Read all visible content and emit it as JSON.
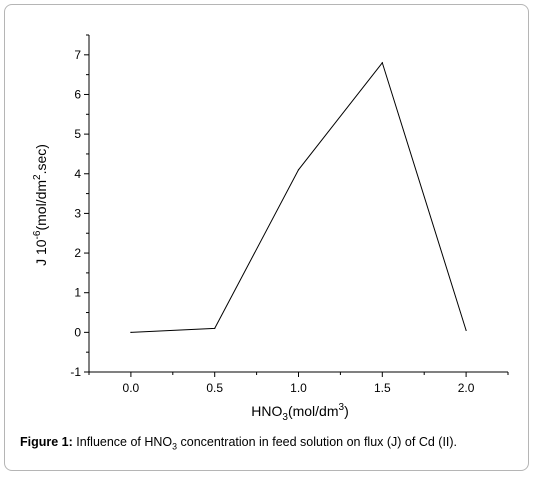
{
  "chart_data": {
    "type": "line",
    "x": [
      0.0,
      0.5,
      1.0,
      1.5,
      2.0
    ],
    "series": [
      {
        "values": [
          0.0,
          0.1,
          4.1,
          6.8,
          0.05
        ]
      }
    ],
    "xlim": [
      -0.25,
      2.25
    ],
    "ylim": [
      -1,
      7.5
    ],
    "x_ticks": [
      "0.0",
      "0.5",
      "1.0",
      "1.5",
      "2.0"
    ],
    "y_ticks": [
      "-1",
      "0",
      "1",
      "2",
      "3",
      "4",
      "5",
      "6",
      "7"
    ],
    "xlabel": {
      "main": "HNO",
      "sub": "3",
      "rest": "(mol/dm",
      "sup": "3",
      "end": ")"
    },
    "ylabel": {
      "main": "J 10",
      "sup1": "-6",
      "mid": "(mol/dm",
      "sup2": "2",
      "end": ".sec)"
    },
    "grid": false
  },
  "caption": {
    "label": "Figure 1:",
    "text_a": " Influence of HNO",
    "sub": "3",
    "text_b": " concentration in feed solution on flux (J) of Cd (II)."
  },
  "colors": {
    "line": "#000000",
    "axis": "#000000",
    "frame": "#b5b5b5"
  }
}
